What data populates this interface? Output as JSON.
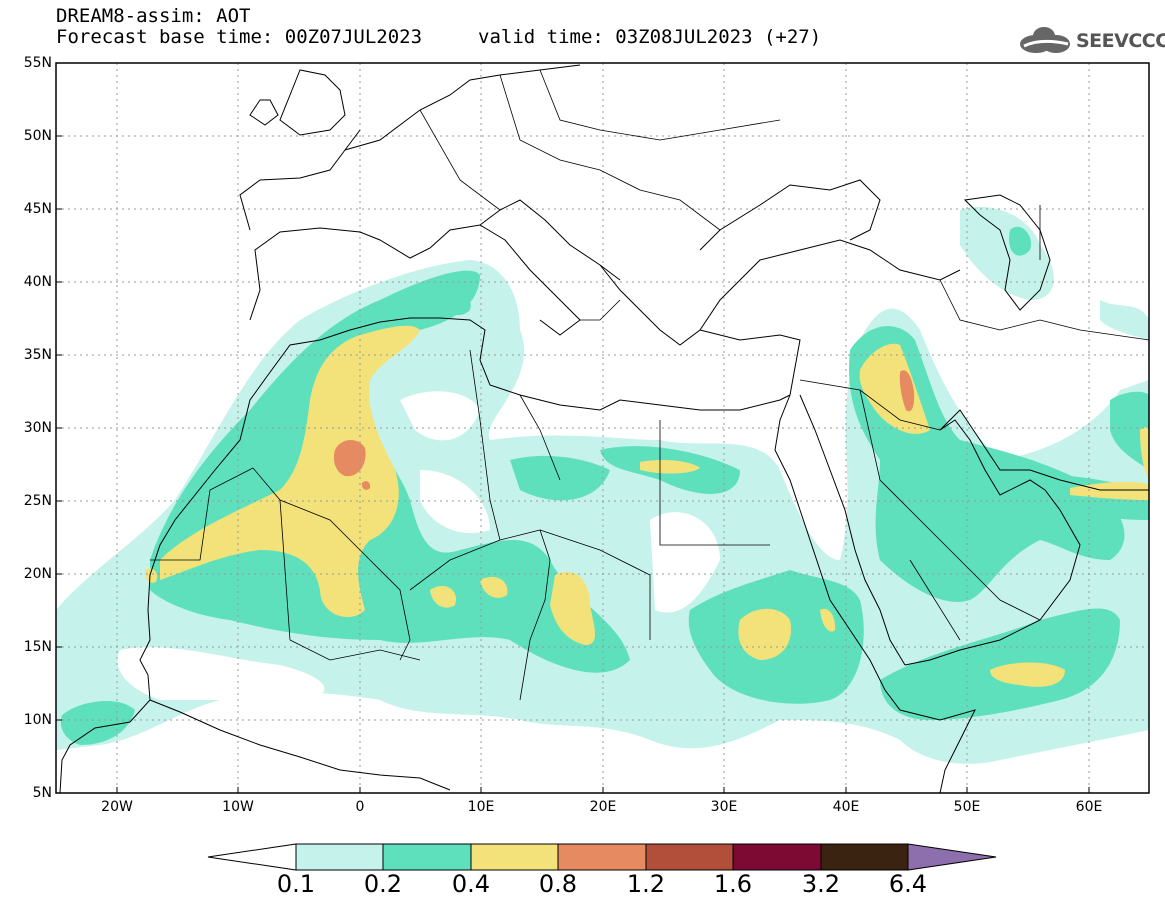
{
  "header": {
    "title_line1": "DREAM8-assim: AOT",
    "title_line2": "Forecast base time: 00Z07JUL2023",
    "valid_time": "valid time: 03Z08JUL2023 (+27)",
    "logo_text": "SEEVCCC"
  },
  "map": {
    "extent": {
      "lon_min": -25,
      "lon_max": 65,
      "lat_min": 5,
      "lat_max": 55
    },
    "lat_labels": [
      "55N",
      "50N",
      "45N",
      "40N",
      "35N",
      "30N",
      "25N",
      "20N",
      "15N",
      "10N",
      "5N"
    ],
    "lon_labels": [
      "20W",
      "10W",
      "0",
      "10E",
      "20E",
      "30E",
      "40E",
      "50E",
      "60E"
    ],
    "variable": "AOT"
  },
  "colorbar": {
    "labels": [
      "0.1",
      "0.2",
      "0.4",
      "0.8",
      "1.2",
      "1.6",
      "3.2",
      "6.4"
    ],
    "colors": [
      "#ffffff",
      "#c6f2ec",
      "#5fe0bd",
      "#f3e27a",
      "#e68a62",
      "#b24f3b",
      "#7c0a33",
      "#3a2411",
      "#8e6fad"
    ]
  }
}
